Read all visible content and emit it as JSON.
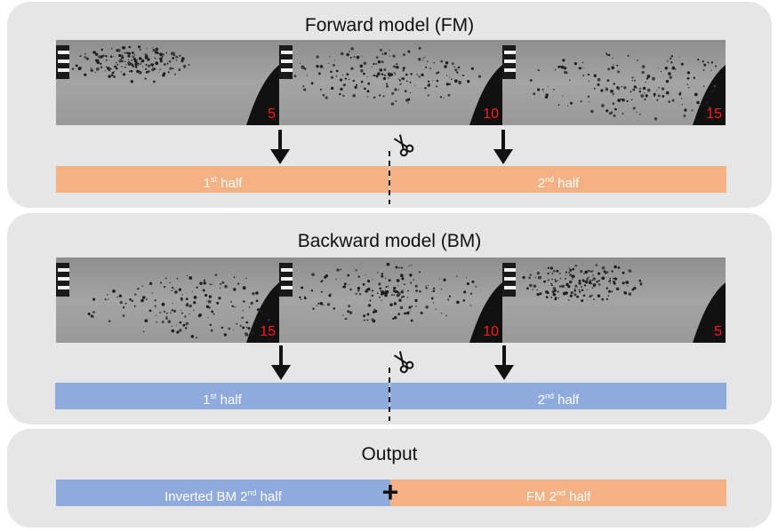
{
  "forward": {
    "title": "Forward model (FM)",
    "frames": [
      "5",
      "10",
      "15"
    ],
    "bar_left": {
      "text": "1",
      "sup": "st",
      "rest": " half"
    },
    "bar_right": {
      "text": "2",
      "sup": "nd",
      "rest": " half"
    }
  },
  "backward": {
    "title": "Backward model (BM)",
    "frames": [
      "15",
      "10",
      "5"
    ],
    "bar_left": {
      "text": "1",
      "sup": "st",
      "rest": " half"
    },
    "bar_right": {
      "text": "2",
      "sup": "nd",
      "rest": " half"
    }
  },
  "output": {
    "title": "Output",
    "left": {
      "text": "Inverted BM 2",
      "sup": "nd",
      "rest": " half"
    },
    "plus": "+",
    "right": {
      "text": "FM 2",
      "sup": "nd",
      "rest": " half"
    }
  },
  "colors": {
    "fm": "#f4b183",
    "bm": "#8faadc",
    "panel": "#e6e6e6",
    "frame_number": "#ff1a1a"
  },
  "icons": [
    "scissors-icon",
    "down-arrow-icon",
    "plus-icon"
  ]
}
